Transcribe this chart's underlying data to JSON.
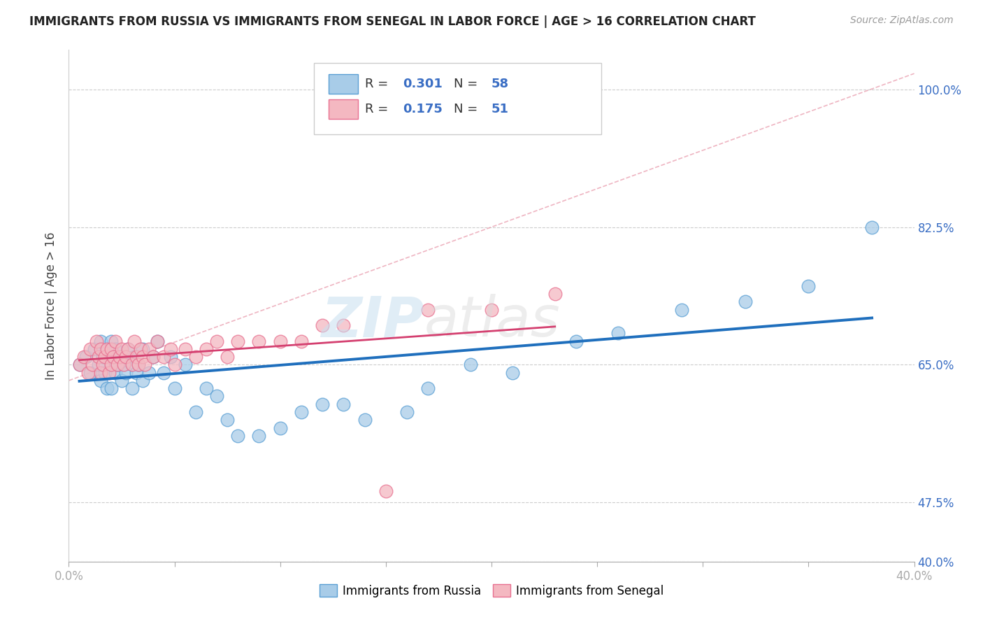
{
  "title": "IMMIGRANTS FROM RUSSIA VS IMMIGRANTS FROM SENEGAL IN LABOR FORCE | AGE > 16 CORRELATION CHART",
  "source": "Source: ZipAtlas.com",
  "ylabel": "In Labor Force | Age > 16",
  "xlim": [
    0.0,
    0.4
  ],
  "ylim": [
    0.4,
    1.05
  ],
  "ytick_labels": [
    "40.0%",
    "47.5%",
    "65.0%",
    "82.5%",
    "100.0%"
  ],
  "ytick_values": [
    0.4,
    0.475,
    0.65,
    0.825,
    1.0
  ],
  "xtick_values": [
    0.0,
    0.05,
    0.1,
    0.15,
    0.2,
    0.25,
    0.3,
    0.35,
    0.4
  ],
  "russia_color": "#a8cce8",
  "senegal_color": "#f4b8c1",
  "russia_edge_color": "#5a9fd4",
  "senegal_edge_color": "#e87090",
  "russia_line_color": "#1f6fbd",
  "senegal_line_color": "#d44070",
  "R_russia": 0.301,
  "N_russia": 58,
  "R_senegal": 0.175,
  "N_senegal": 51,
  "legend_label_russia": "Immigrants from Russia",
  "legend_label_senegal": "Immigrants from Senegal",
  "russia_x": [
    0.005,
    0.008,
    0.01,
    0.012,
    0.014,
    0.015,
    0.015,
    0.016,
    0.017,
    0.018,
    0.019,
    0.02,
    0.02,
    0.02,
    0.021,
    0.022,
    0.022,
    0.023,
    0.025,
    0.025,
    0.026,
    0.027,
    0.028,
    0.03,
    0.03,
    0.031,
    0.032,
    0.033,
    0.035,
    0.035,
    0.038,
    0.04,
    0.042,
    0.045,
    0.048,
    0.05,
    0.055,
    0.06,
    0.065,
    0.07,
    0.075,
    0.08,
    0.09,
    0.1,
    0.11,
    0.12,
    0.13,
    0.14,
    0.16,
    0.17,
    0.19,
    0.21,
    0.24,
    0.26,
    0.29,
    0.32,
    0.35,
    0.38
  ],
  "russia_y": [
    0.65,
    0.66,
    0.64,
    0.67,
    0.65,
    0.63,
    0.68,
    0.66,
    0.64,
    0.62,
    0.67,
    0.65,
    0.62,
    0.68,
    0.66,
    0.64,
    0.67,
    0.65,
    0.63,
    0.66,
    0.65,
    0.64,
    0.67,
    0.65,
    0.62,
    0.66,
    0.64,
    0.65,
    0.63,
    0.67,
    0.64,
    0.66,
    0.68,
    0.64,
    0.66,
    0.62,
    0.65,
    0.59,
    0.62,
    0.61,
    0.58,
    0.56,
    0.56,
    0.57,
    0.59,
    0.6,
    0.6,
    0.58,
    0.59,
    0.62,
    0.65,
    0.64,
    0.68,
    0.69,
    0.72,
    0.73,
    0.75,
    0.825
  ],
  "senegal_x": [
    0.005,
    0.007,
    0.009,
    0.01,
    0.011,
    0.013,
    0.014,
    0.015,
    0.015,
    0.016,
    0.017,
    0.018,
    0.019,
    0.02,
    0.02,
    0.021,
    0.022,
    0.023,
    0.024,
    0.025,
    0.026,
    0.027,
    0.028,
    0.03,
    0.031,
    0.032,
    0.033,
    0.034,
    0.035,
    0.036,
    0.038,
    0.04,
    0.042,
    0.045,
    0.048,
    0.05,
    0.055,
    0.06,
    0.065,
    0.07,
    0.075,
    0.08,
    0.09,
    0.1,
    0.11,
    0.12,
    0.13,
    0.15,
    0.17,
    0.2,
    0.23
  ],
  "senegal_y": [
    0.65,
    0.66,
    0.64,
    0.67,
    0.65,
    0.68,
    0.66,
    0.64,
    0.67,
    0.65,
    0.66,
    0.67,
    0.64,
    0.65,
    0.67,
    0.66,
    0.68,
    0.65,
    0.66,
    0.67,
    0.65,
    0.66,
    0.67,
    0.65,
    0.68,
    0.66,
    0.65,
    0.67,
    0.66,
    0.65,
    0.67,
    0.66,
    0.68,
    0.66,
    0.67,
    0.65,
    0.67,
    0.66,
    0.67,
    0.68,
    0.66,
    0.68,
    0.68,
    0.68,
    0.68,
    0.7,
    0.7,
    0.49,
    0.72,
    0.72,
    0.74
  ]
}
